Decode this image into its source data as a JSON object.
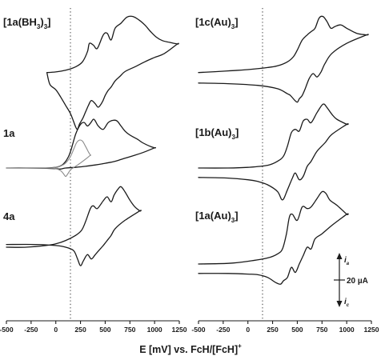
{
  "figure": {
    "xlabel": {
      "main": "E [mV] vs. FcH/[FcH]",
      "sup": "+"
    },
    "scale_bar": {
      "value_label": "20 µA",
      "top_label": {
        "base": "i",
        "sub": "a"
      },
      "bottom_label": {
        "base": "i",
        "sub": "c"
      }
    }
  },
  "panels": [
    {
      "id": "p1",
      "label": {
        "base": "[1a(BH",
        "sub1": "3",
        "mid": ")",
        "sub2": "3",
        "end": "]"
      }
    },
    {
      "id": "p2",
      "label": {
        "base": "1a"
      }
    },
    {
      "id": "p3",
      "label": {
        "base": "4a"
      }
    },
    {
      "id": "p4",
      "label": {
        "base": "[1c(Au)",
        "sub1": "3",
        "end": "]"
      }
    },
    {
      "id": "p5",
      "label": {
        "base": "[1b(Au)",
        "sub1": "3",
        "end": "]"
      }
    },
    {
      "id": "p6",
      "label": {
        "base": "[1a(Au)",
        "sub1": "3",
        "end": "]"
      }
    }
  ],
  "chart_data": [
    {
      "type": "line",
      "panel": "[1a(BH3)3]",
      "column": "left",
      "xlabel": "E [mV] vs. FcH/[FcH]+",
      "xlim": [
        -500,
        1250
      ],
      "xticks": [
        -500,
        -250,
        0,
        250,
        500,
        750,
        1000,
        1250
      ],
      "zero_line": "dotted",
      "series": [
        {
          "color": "#1a1a1a",
          "closed": true,
          "x": [
            -90,
            0,
            100,
            200,
            270,
            320,
            340,
            380,
            420,
            480,
            520,
            560,
            600,
            660,
            720,
            780,
            840,
            900,
            960,
            1020,
            1080,
            1150,
            1230,
            1230,
            1100,
            1000,
            900,
            800,
            700,
            650,
            600,
            560,
            530,
            500,
            470,
            430,
            400,
            360,
            330,
            300,
            270,
            240,
            220,
            200,
            150,
            100,
            50,
            0,
            -60,
            -90
          ],
          "y": [
            0.3,
            0.5,
            1.0,
            2.0,
            3.5,
            6.5,
            9.0,
            8.5,
            7.5,
            11.5,
            12.0,
            10.0,
            13.5,
            15.0,
            16.8,
            17.0,
            16.0,
            14.5,
            12.5,
            10.8,
            9.8,
            9.3,
            8.8,
            8.8,
            6.0,
            4.8,
            3.5,
            2.0,
            0.6,
            -0.8,
            -2.2,
            -4.0,
            -5.0,
            -6.5,
            -8.5,
            -10.0,
            -9.0,
            -8.0,
            -9.5,
            -11.5,
            -13.5,
            -15.0,
            -16.5,
            -15.8,
            -12.0,
            -9.5,
            -7.0,
            -4.8,
            -3.2,
            0.3
          ]
        }
      ]
    },
    {
      "type": "line",
      "panel": "1a",
      "column": "left",
      "xlim": [
        -500,
        1250
      ],
      "xticks": [
        -500,
        -250,
        0,
        250,
        500,
        750,
        1000,
        1250
      ],
      "zero_line": "dotted",
      "series": [
        {
          "color": "#1a1a1a",
          "closed": true,
          "x": [
            -500,
            -300,
            -100,
            0,
            60,
            100,
            130,
            150,
            170,
            200,
            230,
            260,
            290,
            320,
            350,
            380,
            400,
            430,
            480,
            530,
            580,
            620,
            660,
            700,
            740,
            780,
            830,
            880,
            950,
            1000,
            1000,
            900,
            800,
            700,
            600,
            500,
            400,
            300,
            200,
            100,
            50,
            0,
            -100,
            -300,
            -500
          ],
          "y": [
            0.0,
            0.0,
            0.0,
            0.2,
            0.8,
            2.0,
            3.5,
            5.0,
            7.0,
            10.0,
            12.0,
            13.3,
            13.5,
            12.5,
            13.3,
            14.5,
            14.0,
            12.5,
            11.5,
            13.5,
            14.2,
            14.0,
            12.5,
            11.0,
            10.0,
            9.3,
            8.5,
            7.5,
            6.5,
            6.0,
            6.0,
            4.8,
            3.8,
            2.9,
            2.0,
            1.4,
            0.9,
            0.5,
            0.2,
            0.0,
            -0.3,
            -0.2,
            -0.1,
            0.0,
            0.0
          ]
        },
        {
          "color": "#8a8a8a",
          "closed": true,
          "x": [
            -500,
            -100,
            0,
            50,
            100,
            150,
            180,
            210,
            240,
            270,
            300,
            330,
            350,
            350,
            300,
            250,
            200,
            150,
            120,
            100,
            80,
            50,
            0,
            -100,
            -500
          ],
          "y": [
            0.0,
            0.0,
            0.2,
            0.6,
            1.5,
            3.5,
            5.5,
            7.5,
            8.3,
            8.0,
            6.5,
            4.8,
            3.8,
            3.8,
            2.6,
            1.5,
            0.5,
            -0.5,
            -1.8,
            -2.5,
            -1.8,
            -0.8,
            -0.2,
            0.0,
            0.0
          ]
        }
      ]
    },
    {
      "type": "line",
      "panel": "4a",
      "column": "left",
      "xlim": [
        -500,
        1250
      ],
      "xticks": [
        -500,
        -250,
        0,
        250,
        500,
        750,
        1000,
        1250
      ],
      "zero_line": "dotted",
      "series": [
        {
          "color": "#1a1a1a",
          "closed": true,
          "x": [
            -500,
            -300,
            -100,
            0,
            100,
            200,
            260,
            300,
            350,
            380,
            420,
            480,
            520,
            560,
            590,
            630,
            660,
            700,
            750,
            800,
            850,
            850,
            700,
            600,
            560,
            520,
            480,
            450,
            400,
            360,
            320,
            280,
            250,
            220,
            180,
            100,
            0,
            -200,
            -500
          ],
          "y": [
            5.0,
            5.0,
            5.5,
            6.0,
            7.0,
            8.5,
            10.0,
            12.5,
            16.5,
            17.3,
            16.5,
            18.8,
            20.0,
            18.5,
            20.5,
            22.3,
            23.0,
            21.5,
            19.0,
            17.0,
            15.8,
            15.8,
            13.0,
            10.5,
            8.5,
            7.0,
            5.5,
            4.5,
            2.8,
            1.5,
            2.8,
            1.0,
            -0.5,
            1.5,
            4.0,
            5.0,
            5.5,
            5.8,
            5.8
          ]
        }
      ]
    },
    {
      "type": "line",
      "panel": "[1c(Au)3]",
      "column": "right",
      "xlim": [
        -500,
        1250
      ],
      "xticks": [
        -500,
        -250,
        0,
        250,
        500,
        750,
        1000,
        1250
      ],
      "zero_line": "dotted",
      "series": [
        {
          "color": "#1a1a1a",
          "closed": true,
          "x": [
            -500,
            -200,
            0,
            200,
            300,
            400,
            460,
            500,
            550,
            600,
            640,
            680,
            720,
            760,
            800,
            840,
            880,
            940,
            1000,
            1100,
            1200,
            1200,
            1000,
            850,
            780,
            740,
            700,
            660,
            620,
            580,
            550,
            520,
            500,
            470,
            430,
            400,
            300,
            100,
            -200,
            -500
          ],
          "y": [
            0.3,
            0.8,
            1.2,
            1.8,
            2.3,
            3.5,
            5.0,
            7.0,
            10.0,
            11.5,
            12.5,
            13.5,
            16.5,
            17.0,
            15.5,
            13.5,
            14.0,
            14.5,
            13.5,
            12.0,
            11.5,
            11.5,
            9.0,
            6.0,
            3.0,
            0.5,
            -1.0,
            0.0,
            -1.5,
            -4.5,
            -6.5,
            -7.5,
            -8.5,
            -7.8,
            -6.5,
            -6.0,
            -4.5,
            -3.5,
            -3.0,
            -2.8
          ]
        }
      ]
    },
    {
      "type": "line",
      "panel": "[1b(Au)3]",
      "column": "right",
      "xlim": [
        -500,
        1250
      ],
      "xticks": [
        -500,
        -250,
        0,
        250,
        500,
        750,
        1000,
        1250
      ],
      "zero_line": "dotted",
      "series": [
        {
          "color": "#1a1a1a",
          "closed": true,
          "x": [
            -500,
            -200,
            0,
            200,
            300,
            360,
            400,
            440,
            480,
            520,
            560,
            600,
            640,
            700,
            760,
            800,
            850,
            900,
            1000,
            1000,
            850,
            780,
            700,
            640,
            600,
            560,
            520,
            480,
            450,
            400,
            350,
            300,
            200,
            100,
            0,
            -200,
            -500
          ],
          "y": [
            0.0,
            0.0,
            0.2,
            0.8,
            2.0,
            3.5,
            6.5,
            10.5,
            11.5,
            11.0,
            14.0,
            14.5,
            13.5,
            16.5,
            19.0,
            18.0,
            16.0,
            14.5,
            13.0,
            13.0,
            10.0,
            7.5,
            5.0,
            2.0,
            0.5,
            -2.5,
            -3.5,
            -1.5,
            -3.0,
            -6.5,
            -9.5,
            -7.0,
            -5.0,
            -4.0,
            -3.5,
            -3.0,
            -2.8
          ]
        }
      ]
    },
    {
      "type": "line",
      "panel": "[1a(Au)3]",
      "column": "right",
      "xlim": [
        -500,
        1250
      ],
      "xticks": [
        -500,
        -250,
        0,
        250,
        500,
        750,
        1000,
        1250
      ],
      "zero_line": "dotted",
      "series": [
        {
          "color": "#1a1a1a",
          "closed": true,
          "x": [
            -500,
            -200,
            0,
            200,
            300,
            350,
            390,
            420,
            450,
            500,
            550,
            600,
            640,
            700,
            750,
            790,
            830,
            900,
            1000,
            1000,
            850,
            750,
            680,
            640,
            600,
            560,
            520,
            480,
            440,
            400,
            360,
            330,
            280,
            200,
            100,
            0,
            -200,
            -500
          ],
          "y": [
            0.0,
            0.2,
            0.8,
            1.8,
            3.0,
            4.5,
            9.0,
            14.0,
            14.8,
            13.0,
            17.0,
            16.5,
            17.0,
            19.5,
            21.5,
            21.0,
            19.0,
            17.5,
            14.8,
            14.8,
            11.5,
            9.0,
            7.5,
            4.5,
            5.0,
            2.5,
            0.0,
            -2.5,
            -1.0,
            -4.0,
            -5.0,
            -6.0,
            -5.5,
            -4.0,
            -3.2,
            -3.0,
            -2.8,
            -2.8
          ]
        }
      ]
    }
  ]
}
